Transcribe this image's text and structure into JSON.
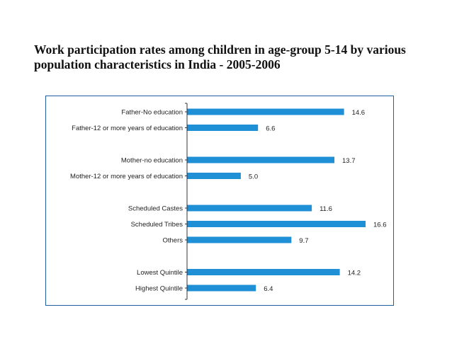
{
  "chart_data": {
    "type": "bar",
    "orientation": "horizontal",
    "title_line1": "Work participation rates among children in age-group 5-14 by various",
    "title_line2": "population characteristics in India - 2005-2006",
    "bar_color": "#1f8fd6",
    "axis_color": "#333333",
    "xlim": [
      0,
      16.6
    ],
    "groups": [
      {
        "items": [
          {
            "label": "Father-No education",
            "value": 14.6,
            "value_label": "14.6"
          },
          {
            "label": "Father-12 or more years of education",
            "value": 6.6,
            "value_label": "6.6"
          }
        ]
      },
      {
        "items": [
          {
            "label": "Mother-no education",
            "value": 13.7,
            "value_label": "13.7"
          },
          {
            "label": "Mother-12 or more years of education",
            "value": 5.0,
            "value_label": "5.0"
          }
        ]
      },
      {
        "items": [
          {
            "label": "Scheduled Castes",
            "value": 11.6,
            "value_label": "11.6"
          },
          {
            "label": "Scheduled Tribes",
            "value": 16.6,
            "value_label": "16.6"
          },
          {
            "label": "Others",
            "value": 9.7,
            "value_label": "9.7"
          }
        ]
      },
      {
        "items": [
          {
            "label": "Lowest Quintile",
            "value": 14.2,
            "value_label": "14.2"
          },
          {
            "label": "Highest Quintile",
            "value": 6.4,
            "value_label": "6.4"
          }
        ]
      }
    ]
  }
}
